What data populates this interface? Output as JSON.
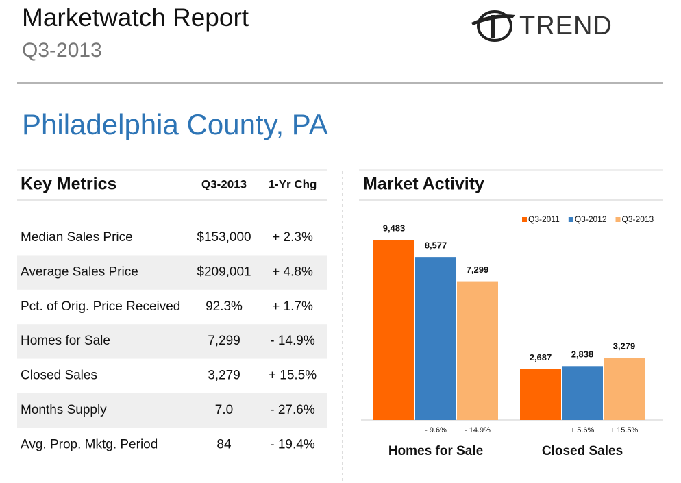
{
  "header": {
    "title": "Marketwatch Report",
    "subtitle": "Q3-2013",
    "logo": "TREND"
  },
  "region": "Philadelphia County, PA",
  "key_metrics": {
    "title": "Key Metrics",
    "columns": [
      "Q3-2013",
      "1-Yr Chg"
    ],
    "rows": [
      [
        "Median Sales Price",
        "$153,000",
        "+ 2.3%"
      ],
      [
        "Average Sales Price",
        "$209,001",
        "+ 4.8%"
      ],
      [
        "Pct. of Orig. Price Received",
        "92.3%",
        "+ 1.7%"
      ],
      [
        "Homes for Sale",
        "7,299",
        "- 14.9%"
      ],
      [
        "Closed Sales",
        "3,279",
        "+ 15.5%"
      ],
      [
        "Months Supply",
        "7.0",
        "- 27.6%"
      ],
      [
        "Avg. Prop. Mktg. Period",
        "84",
        "- 19.4%"
      ]
    ]
  },
  "chart_data": {
    "type": "bar",
    "title": "Market Activity",
    "categories": [
      "Homes for Sale",
      "Closed Sales"
    ],
    "series": [
      {
        "name": "Q3-2011",
        "color": "#ff6600",
        "values": [
          9483,
          2687
        ],
        "value_labels": [
          "9,483",
          "2,687"
        ]
      },
      {
        "name": "Q3-2012",
        "color": "#3a7fc1",
        "values": [
          8577,
          2838
        ],
        "value_labels": [
          "8,577",
          "2,838"
        ],
        "changes": [
          "- 9.6%",
          "+ 5.6%"
        ]
      },
      {
        "name": "Q3-2013",
        "color": "#fbb36e",
        "values": [
          7299,
          3279
        ],
        "value_labels": [
          "7,299",
          "3,279"
        ],
        "changes": [
          "- 14.9%",
          "+ 15.5%"
        ]
      }
    ]
  }
}
